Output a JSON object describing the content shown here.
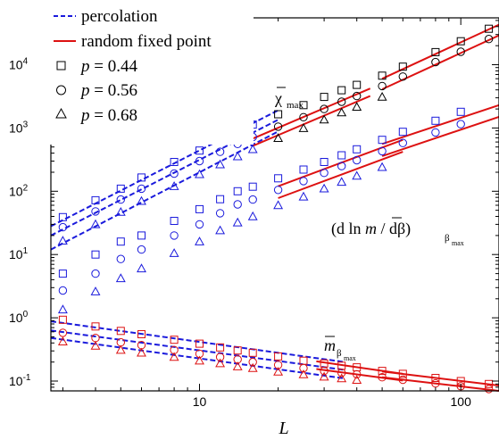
{
  "chart_data": {
    "type": "scatter",
    "xlabel": "L",
    "x_scale": "log",
    "y_scale": "log",
    "xlim": [
      2.7,
      140
    ],
    "ylim": [
      0.07,
      55000
    ],
    "x_ticks": [
      {
        "value": 10,
        "label": "10"
      },
      {
        "value": 100,
        "label": "100"
      }
    ],
    "y_ticks": [
      {
        "value": 0.1,
        "base": "10",
        "exp": "-1"
      },
      {
        "value": 1,
        "base": "10",
        "exp": "0"
      },
      {
        "value": 10,
        "base": "10",
        "exp": "1"
      },
      {
        "value": 100,
        "base": "10",
        "exp": "2"
      },
      {
        "value": 1000,
        "base": "10",
        "exp": "3"
      },
      {
        "value": 10000,
        "base": "10",
        "exp": "4"
      }
    ],
    "legend": {
      "placement": "top-left",
      "lines": [
        {
          "label": "percolation",
          "color": "#1a1adc",
          "dash": true
        },
        {
          "label": "random fixed point",
          "color": "#dd1111",
          "dash": false
        }
      ],
      "markers": [
        {
          "marker": "square",
          "p_symbol": "p",
          "text": " = 0.44"
        },
        {
          "marker": "circle",
          "p_symbol": "p",
          "text": " = 0.56"
        },
        {
          "marker": "triangle",
          "p_symbol": "p",
          "text": " = 0.68"
        }
      ]
    },
    "annotations": {
      "chi": {
        "main": "χ",
        "sub": "max"
      },
      "dlnm": {
        "open": "(d ln ",
        "m": "m",
        "mid": " / dβ)",
        "sub": "β",
        "subsub": "max"
      },
      "mbeta": {
        "m": "m",
        "sub": "β",
        "subsub": "max"
      }
    },
    "colors": {
      "percolation": "#1a1adc",
      "random": "#dd1111",
      "black": "#000000"
    },
    "series": [
      {
        "group": "chi_max",
        "marker": "square",
        "color_rule": "chi",
        "points": [
          [
            3,
            39
          ],
          [
            4,
            72
          ],
          [
            5,
            110
          ],
          [
            6,
            165
          ],
          [
            8,
            290
          ],
          [
            10,
            440
          ],
          [
            12,
            640
          ],
          [
            14,
            860
          ],
          [
            16,
            1130
          ],
          [
            20,
            1650
          ],
          [
            25,
            2300
          ],
          [
            30,
            3100
          ],
          [
            35,
            3950
          ],
          [
            40,
            4800
          ],
          [
            50,
            6700
          ],
          [
            60,
            9300
          ],
          [
            80,
            15800
          ],
          [
            100,
            23500
          ],
          [
            128,
            37000
          ]
        ]
      },
      {
        "group": "chi_max",
        "marker": "circle",
        "color_rule": "chi",
        "points": [
          [
            3,
            27
          ],
          [
            4,
            48
          ],
          [
            5,
            74
          ],
          [
            6,
            110
          ],
          [
            8,
            190
          ],
          [
            10,
            300
          ],
          [
            12,
            420
          ],
          [
            14,
            560
          ],
          [
            16,
            720
          ],
          [
            20,
            1050
          ],
          [
            25,
            1480
          ],
          [
            30,
            2000
          ],
          [
            35,
            2600
          ],
          [
            40,
            3200
          ],
          [
            50,
            4600
          ],
          [
            60,
            6500
          ],
          [
            80,
            11000
          ],
          [
            100,
            16000
          ],
          [
            128,
            25500
          ]
        ]
      },
      {
        "group": "chi_max",
        "marker": "triangle",
        "color_rule": "chi",
        "points": [
          [
            3,
            16.5
          ],
          [
            4,
            30
          ],
          [
            5,
            47
          ],
          [
            6,
            70
          ],
          [
            8,
            120
          ],
          [
            10,
            185
          ],
          [
            12,
            265
          ],
          [
            14,
            355
          ],
          [
            16,
            460
          ],
          [
            20,
            690
          ],
          [
            25,
            990
          ],
          [
            30,
            1350
          ],
          [
            35,
            1750
          ],
          [
            40,
            2150
          ],
          [
            50,
            3100
          ]
        ]
      },
      {
        "group": "dlnm_dbeta",
        "marker": "square",
        "color_rule": "blue",
        "points": [
          [
            3,
            5
          ],
          [
            4,
            10
          ],
          [
            5,
            16
          ],
          [
            6,
            20
          ],
          [
            8,
            34
          ],
          [
            10,
            52
          ],
          [
            12,
            75
          ],
          [
            14,
            100
          ],
          [
            16,
            118
          ],
          [
            20,
            160
          ],
          [
            25,
            220
          ],
          [
            30,
            290
          ],
          [
            35,
            370
          ],
          [
            40,
            460
          ],
          [
            50,
            650
          ],
          [
            60,
            870
          ],
          [
            80,
            1300
          ],
          [
            100,
            1800
          ]
        ]
      },
      {
        "group": "dlnm_dbeta",
        "marker": "circle",
        "color_rule": "blue",
        "points": [
          [
            3,
            2.7
          ],
          [
            4,
            5
          ],
          [
            5,
            8.5
          ],
          [
            6,
            12
          ],
          [
            8,
            20
          ],
          [
            10,
            30
          ],
          [
            12,
            45
          ],
          [
            14,
            62
          ],
          [
            16,
            74
          ],
          [
            20,
            105
          ],
          [
            25,
            145
          ],
          [
            30,
            195
          ],
          [
            35,
            250
          ],
          [
            40,
            310
          ],
          [
            50,
            430
          ],
          [
            60,
            580
          ],
          [
            80,
            850
          ],
          [
            100,
            1150
          ]
        ]
      },
      {
        "group": "dlnm_dbeta",
        "marker": "triangle",
        "color_rule": "blue",
        "points": [
          [
            3,
            1.35
          ],
          [
            4,
            2.6
          ],
          [
            5,
            4.2
          ],
          [
            6,
            6
          ],
          [
            8,
            10.5
          ],
          [
            10,
            16
          ],
          [
            12,
            24
          ],
          [
            14,
            32
          ],
          [
            16,
            40
          ],
          [
            20,
            60
          ],
          [
            25,
            82
          ],
          [
            30,
            110
          ],
          [
            35,
            140
          ],
          [
            40,
            175
          ],
          [
            50,
            240
          ]
        ]
      },
      {
        "group": "m_beta_max",
        "marker": "square",
        "color_rule": "red",
        "points": [
          [
            3,
            0.93
          ],
          [
            4,
            0.73
          ],
          [
            5,
            0.62
          ],
          [
            6,
            0.55
          ],
          [
            8,
            0.45
          ],
          [
            10,
            0.39
          ],
          [
            12,
            0.34
          ],
          [
            14,
            0.305
          ],
          [
            16,
            0.28
          ],
          [
            20,
            0.245
          ],
          [
            25,
            0.21
          ],
          [
            30,
            0.19
          ],
          [
            35,
            0.175
          ],
          [
            40,
            0.165
          ],
          [
            50,
            0.145
          ],
          [
            60,
            0.13
          ],
          [
            80,
            0.112
          ],
          [
            100,
            0.1
          ],
          [
            128,
            0.09
          ]
        ]
      },
      {
        "group": "m_beta_max",
        "marker": "circle",
        "color_rule": "red",
        "points": [
          [
            3,
            0.58
          ],
          [
            4,
            0.48
          ],
          [
            5,
            0.41
          ],
          [
            6,
            0.37
          ],
          [
            8,
            0.31
          ],
          [
            10,
            0.27
          ],
          [
            12,
            0.24
          ],
          [
            14,
            0.22
          ],
          [
            16,
            0.2
          ],
          [
            20,
            0.18
          ],
          [
            25,
            0.16
          ],
          [
            30,
            0.145
          ],
          [
            35,
            0.135
          ],
          [
            40,
            0.128
          ],
          [
            50,
            0.115
          ],
          [
            60,
            0.105
          ],
          [
            80,
            0.092
          ],
          [
            100,
            0.083
          ],
          [
            128,
            0.075
          ]
        ]
      },
      {
        "group": "m_beta_max",
        "marker": "triangle",
        "color_rule": "red",
        "points": [
          [
            3,
            0.42
          ],
          [
            4,
            0.36
          ],
          [
            5,
            0.31
          ],
          [
            6,
            0.28
          ],
          [
            8,
            0.24
          ],
          [
            10,
            0.21
          ],
          [
            12,
            0.19
          ],
          [
            14,
            0.17
          ],
          [
            16,
            0.16
          ],
          [
            20,
            0.14
          ],
          [
            25,
            0.127
          ],
          [
            30,
            0.117
          ],
          [
            35,
            0.11
          ],
          [
            40,
            0.104
          ]
        ]
      }
    ],
    "fit_lines": [
      {
        "kind": "percolation",
        "x": [
          2.7,
          20
        ],
        "y": [
          28,
          1900
        ]
      },
      {
        "kind": "percolation",
        "x": [
          2.7,
          20
        ],
        "y": [
          20,
          1350
        ]
      },
      {
        "kind": "percolation",
        "x": [
          2.7,
          20
        ],
        "y": [
          12,
          880
        ]
      },
      {
        "kind": "percolation",
        "x": [
          2.7,
          36
        ],
        "y": [
          0.88,
          0.2
        ]
      },
      {
        "kind": "percolation",
        "x": [
          2.7,
          36
        ],
        "y": [
          0.63,
          0.15
        ]
      },
      {
        "kind": "percolation",
        "x": [
          2.7,
          36
        ],
        "y": [
          0.48,
          0.11
        ]
      },
      {
        "kind": "random",
        "x": [
          16,
          45
        ],
        "y": [
          680,
          4200
        ]
      },
      {
        "kind": "random",
        "x": [
          16,
          45
        ],
        "y": [
          520,
          3200
        ]
      },
      {
        "kind": "random",
        "x": [
          50,
          140
        ],
        "y": [
          6000,
          43000
        ]
      },
      {
        "kind": "random",
        "x": [
          50,
          140
        ],
        "y": [
          4100,
          29000
        ]
      },
      {
        "kind": "random",
        "x": [
          20,
          60
        ],
        "y": [
          120,
          650
        ]
      },
      {
        "kind": "random",
        "x": [
          20,
          60
        ],
        "y": [
          78,
          420
        ]
      },
      {
        "kind": "random",
        "x": [
          50,
          140
        ],
        "y": [
          560,
          2300
        ]
      },
      {
        "kind": "random",
        "x": [
          50,
          140
        ],
        "y": [
          360,
          1500
        ]
      },
      {
        "kind": "random",
        "x": [
          28,
          60
        ],
        "y": [
          0.205,
          0.13
        ]
      },
      {
        "kind": "random",
        "x": [
          28,
          60
        ],
        "y": [
          0.155,
          0.102
        ]
      },
      {
        "kind": "random",
        "x": [
          50,
          140
        ],
        "y": [
          0.142,
          0.085
        ]
      },
      {
        "kind": "random",
        "x": [
          50,
          140
        ],
        "y": [
          0.115,
          0.07
        ]
      }
    ]
  }
}
